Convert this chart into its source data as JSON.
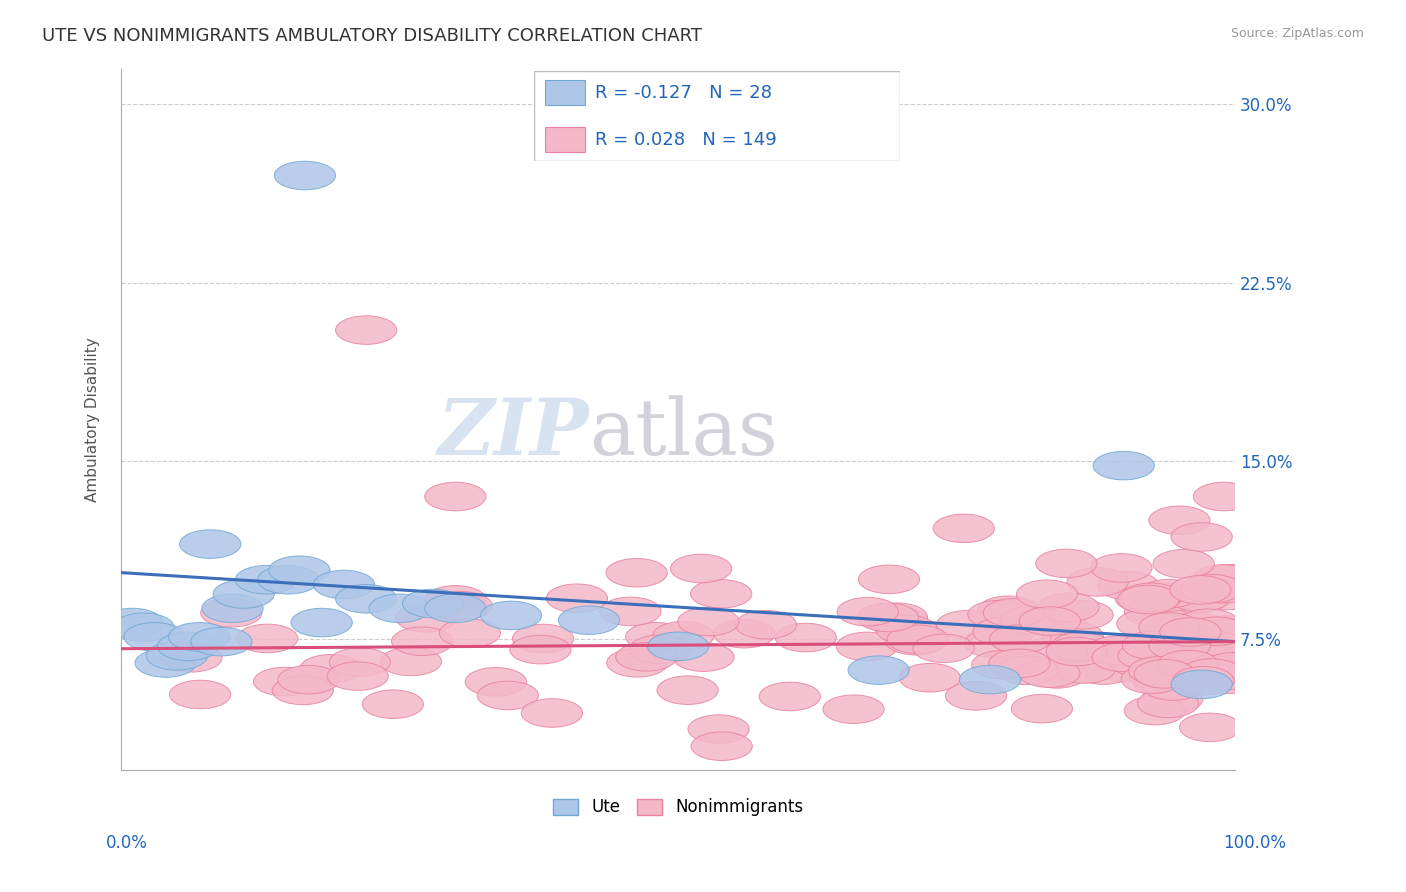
{
  "title": "UTE VS NONIMMIGRANTS AMBULATORY DISABILITY CORRELATION CHART",
  "source": "Source: ZipAtlas.com",
  "ylabel": "Ambulatory Disability",
  "xlim": [
    0.0,
    1.0
  ],
  "ylim": [
    0.02,
    0.315
  ],
  "ute_R": -0.127,
  "ute_N": 28,
  "nonimm_R": 0.028,
  "nonimm_N": 149,
  "ute_color": "#aec6e8",
  "ute_edge_color": "#6fa8d4",
  "nonimm_color": "#f4b8c8",
  "nonimm_edge_color": "#e8829e",
  "line_ute_color": "#3b6fba",
  "line_nonimm_color": "#d94f7a",
  "legend_color": "#2266bb",
  "background_color": "#ffffff",
  "title_fontsize": 13,
  "axis_label_fontsize": 11,
  "tick_fontsize": 12,
  "ute_x": [
    0.01,
    0.02,
    0.03,
    0.04,
    0.05,
    0.06,
    0.07,
    0.08,
    0.09,
    0.1,
    0.11,
    0.13,
    0.15,
    0.16,
    0.18,
    0.2,
    0.22,
    0.25,
    0.28,
    0.3,
    0.35,
    0.42,
    0.5,
    0.68,
    0.78,
    0.9,
    0.97,
    0.165
  ],
  "ute_y": [
    0.082,
    0.08,
    0.076,
    0.065,
    0.068,
    0.072,
    0.076,
    0.115,
    0.074,
    0.088,
    0.094,
    0.1,
    0.1,
    0.104,
    0.082,
    0.098,
    0.092,
    0.088,
    0.09,
    0.088,
    0.085,
    0.083,
    0.072,
    0.062,
    0.058,
    0.148,
    0.056,
    0.27
  ],
  "nonimm_seed": 77,
  "watermark_zip_color": "#c8d8e8",
  "watermark_atlas_color": "#c8c8d0"
}
